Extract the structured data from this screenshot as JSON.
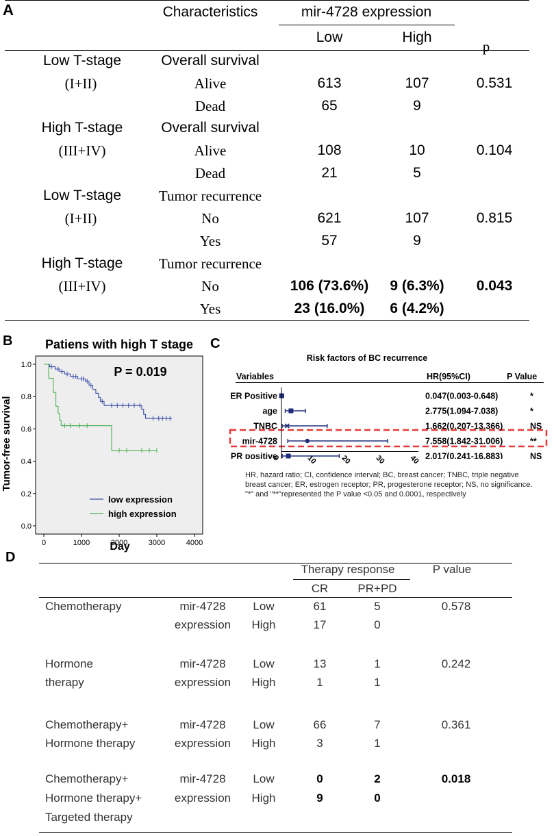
{
  "panelA": {
    "label": "A",
    "header": {
      "characteristics": "Characteristics",
      "expression": "mir-4728 expression",
      "low": "Low",
      "high": "High",
      "p": "p"
    },
    "groups": [
      {
        "stage": "Low T-stage",
        "range": "(I+II)",
        "category": "Overall survival",
        "rows": [
          {
            "label": "Alive",
            "low": "613",
            "high": "107",
            "p": "0.531"
          },
          {
            "label": "Dead",
            "low": "65",
            "high": "9",
            "p": ""
          }
        ]
      },
      {
        "stage": "High T-stage",
        "range": "(III+IV)",
        "category": "Overall survival",
        "rows": [
          {
            "label": "Alive",
            "low": "108",
            "high": "10",
            "p": "0.104"
          },
          {
            "label": "Dead",
            "low": "21",
            "high": "5",
            "p": ""
          }
        ]
      },
      {
        "stage": "Low T-stage",
        "range": "(I+II)",
        "category": "Tumor recurrence",
        "rows": [
          {
            "label": "No",
            "low": "621",
            "high": "107",
            "p": "0.815"
          },
          {
            "label": "Yes",
            "low": "57",
            "high": "9",
            "p": ""
          }
        ]
      },
      {
        "stage": "High T-stage",
        "range": "(III+IV)",
        "category": "Tumor recurrence",
        "rows": [
          {
            "label": "No",
            "low": "106 (73.6%)",
            "high": "9 (6.3%)",
            "p": "0.043"
          },
          {
            "label": "Yes",
            "low": "23 (16.0%)",
            "high": "6 (4.2%)",
            "p": ""
          }
        ]
      }
    ]
  },
  "panelB": {
    "label": "B",
    "chart_data": {
      "type": "line",
      "title": "Patiens with high T stage",
      "annotation": "P = 0.019",
      "xlabel": "Day",
      "ylabel": "Tumor-free survival",
      "xlim": [
        0,
        4000
      ],
      "ylim": [
        0,
        1.0
      ],
      "xticks": [
        "0",
        "1000",
        "2000",
        "3000",
        "4000"
      ],
      "yticks": [
        "0.0",
        "0.2",
        "0.4",
        "0.6",
        "0.8",
        "1.0"
      ],
      "legend": "bottom-right",
      "series": [
        {
          "name": "low expression",
          "color": "#3a4fa8",
          "steps": [
            [
              0,
              1.0
            ],
            [
              150,
              0.985
            ],
            [
              300,
              0.97
            ],
            [
              420,
              0.955
            ],
            [
              550,
              0.94
            ],
            [
              700,
              0.925
            ],
            [
              900,
              0.91
            ],
            [
              1100,
              0.895
            ],
            [
              1200,
              0.87
            ],
            [
              1300,
              0.845
            ],
            [
              1380,
              0.82
            ],
            [
              1450,
              0.795
            ],
            [
              1500,
              0.77
            ],
            [
              1600,
              0.745
            ],
            [
              2600,
              0.72
            ],
            [
              2650,
              0.69
            ],
            [
              2700,
              0.665
            ],
            [
              3400,
              0.665
            ]
          ],
          "censors": [
            [
              200,
              0.985
            ],
            [
              380,
              0.97
            ],
            [
              480,
              0.955
            ],
            [
              620,
              0.94
            ],
            [
              780,
              0.925
            ],
            [
              850,
              0.925
            ],
            [
              1000,
              0.91
            ],
            [
              1050,
              0.91
            ],
            [
              1150,
              0.895
            ],
            [
              1250,
              0.87
            ],
            [
              1550,
              0.77
            ],
            [
              1800,
              0.745
            ],
            [
              1950,
              0.745
            ],
            [
              2100,
              0.745
            ],
            [
              2250,
              0.745
            ],
            [
              2400,
              0.745
            ],
            [
              2550,
              0.745
            ],
            [
              2900,
              0.665
            ],
            [
              3050,
              0.665
            ],
            [
              3150,
              0.665
            ],
            [
              3250,
              0.665
            ],
            [
              3350,
              0.665
            ]
          ]
        },
        {
          "name": "high expression",
          "color": "#4caf50",
          "steps": [
            [
              0,
              1.0
            ],
            [
              130,
              0.913
            ],
            [
              250,
              0.826
            ],
            [
              320,
              0.74
            ],
            [
              380,
              0.696
            ],
            [
              420,
              0.652
            ],
            [
              460,
              0.62
            ],
            [
              1800,
              0.467
            ],
            [
              3000,
              0.467
            ]
          ],
          "censors": [
            [
              550,
              0.62
            ],
            [
              700,
              0.62
            ],
            [
              950,
              0.62
            ],
            [
              1150,
              0.62
            ],
            [
              2000,
              0.467
            ],
            [
              2200,
              0.467
            ],
            [
              2600,
              0.467
            ],
            [
              2800,
              0.467
            ],
            [
              3000,
              0.467
            ]
          ]
        }
      ]
    }
  },
  "panelC": {
    "label": "C",
    "title": "Risk factors of BC recurrence",
    "header": {
      "variables": "Variables",
      "hr": "HR(95%CI)",
      "pvalue": "P Value"
    },
    "chart_data": {
      "type": "forest",
      "xlim": [
        0,
        40
      ],
      "xticks": [
        "0",
        "10",
        "20",
        "30",
        "40"
      ],
      "rows": [
        {
          "variable": "ER Positive",
          "hr": 0.047,
          "lo": 0.003,
          "hi": 0.648,
          "text": "0.047(0.003-0.648)",
          "sig": "*",
          "marker": "square"
        },
        {
          "variable": "age",
          "hr": 2.775,
          "lo": 1.094,
          "hi": 7.038,
          "text": "2.775(1.094-7.038)",
          "sig": "*",
          "marker": "square"
        },
        {
          "variable": "TNBC",
          "hr": 1.662,
          "lo": 0.207,
          "hi": 13.366,
          "text": "1.662(0.207-13.366)",
          "sig": "NS",
          "marker": "x"
        },
        {
          "variable": "mir-4728",
          "hr": 7.558,
          "lo": 1.842,
          "hi": 31.006,
          "text": "7.558(1.842-31.006)",
          "sig": "**",
          "marker": "circle",
          "highlight": true
        },
        {
          "variable": "PR positive",
          "hr": 2.017,
          "lo": 0.241,
          "hi": 16.883,
          "text": "2.017(0.241-16.883)",
          "sig": "NS",
          "marker": "square"
        }
      ]
    },
    "footnote": [
      "HR, hazard ratio; CI, confidence interval; BC, breast cancer; TNBC, triple negative",
      "breast cancer; ER, estrogen receptor; PR, progesterone receptor; NS, no significance.",
      "\"*\" and \"**\"represented the P value <0.05 and 0.0001, respectively"
    ]
  },
  "panelD": {
    "label": "D",
    "header": {
      "therapy_response": "Therapy response",
      "cr": "CR",
      "prpd": "PR+PD",
      "pvalue": "P value"
    },
    "groups": [
      {
        "therapy": [
          "Chemotherapy"
        ],
        "marker": [
          "mir-4728",
          "expression"
        ],
        "levels": [
          "Low",
          "High"
        ],
        "cr": [
          "61",
          "17"
        ],
        "prpd": [
          "5",
          "0"
        ],
        "p": "0.578"
      },
      {
        "therapy": [
          "Hormone",
          "therapy"
        ],
        "marker": [
          "mir-4728",
          "expression"
        ],
        "levels": [
          "Low",
          "High"
        ],
        "cr": [
          "13",
          "1"
        ],
        "prpd": [
          "1",
          "1"
        ],
        "p": "0.242"
      },
      {
        "therapy": [
          "Chemotherapy+",
          "Hormone therapy"
        ],
        "marker": [
          "mir-4728",
          "expression"
        ],
        "levels": [
          "Low",
          "High"
        ],
        "cr": [
          "66",
          "3"
        ],
        "prpd": [
          "7",
          "1"
        ],
        "p": "0.361"
      },
      {
        "therapy": [
          "Chemotherapy+",
          "Hormone therapy+",
          "Targeted therapy"
        ],
        "marker": [
          "mir-4728",
          "expression"
        ],
        "levels": [
          "Low",
          "High"
        ],
        "cr": [
          "0",
          "9"
        ],
        "prpd": [
          "2",
          "0"
        ],
        "p": "0.018"
      }
    ]
  }
}
